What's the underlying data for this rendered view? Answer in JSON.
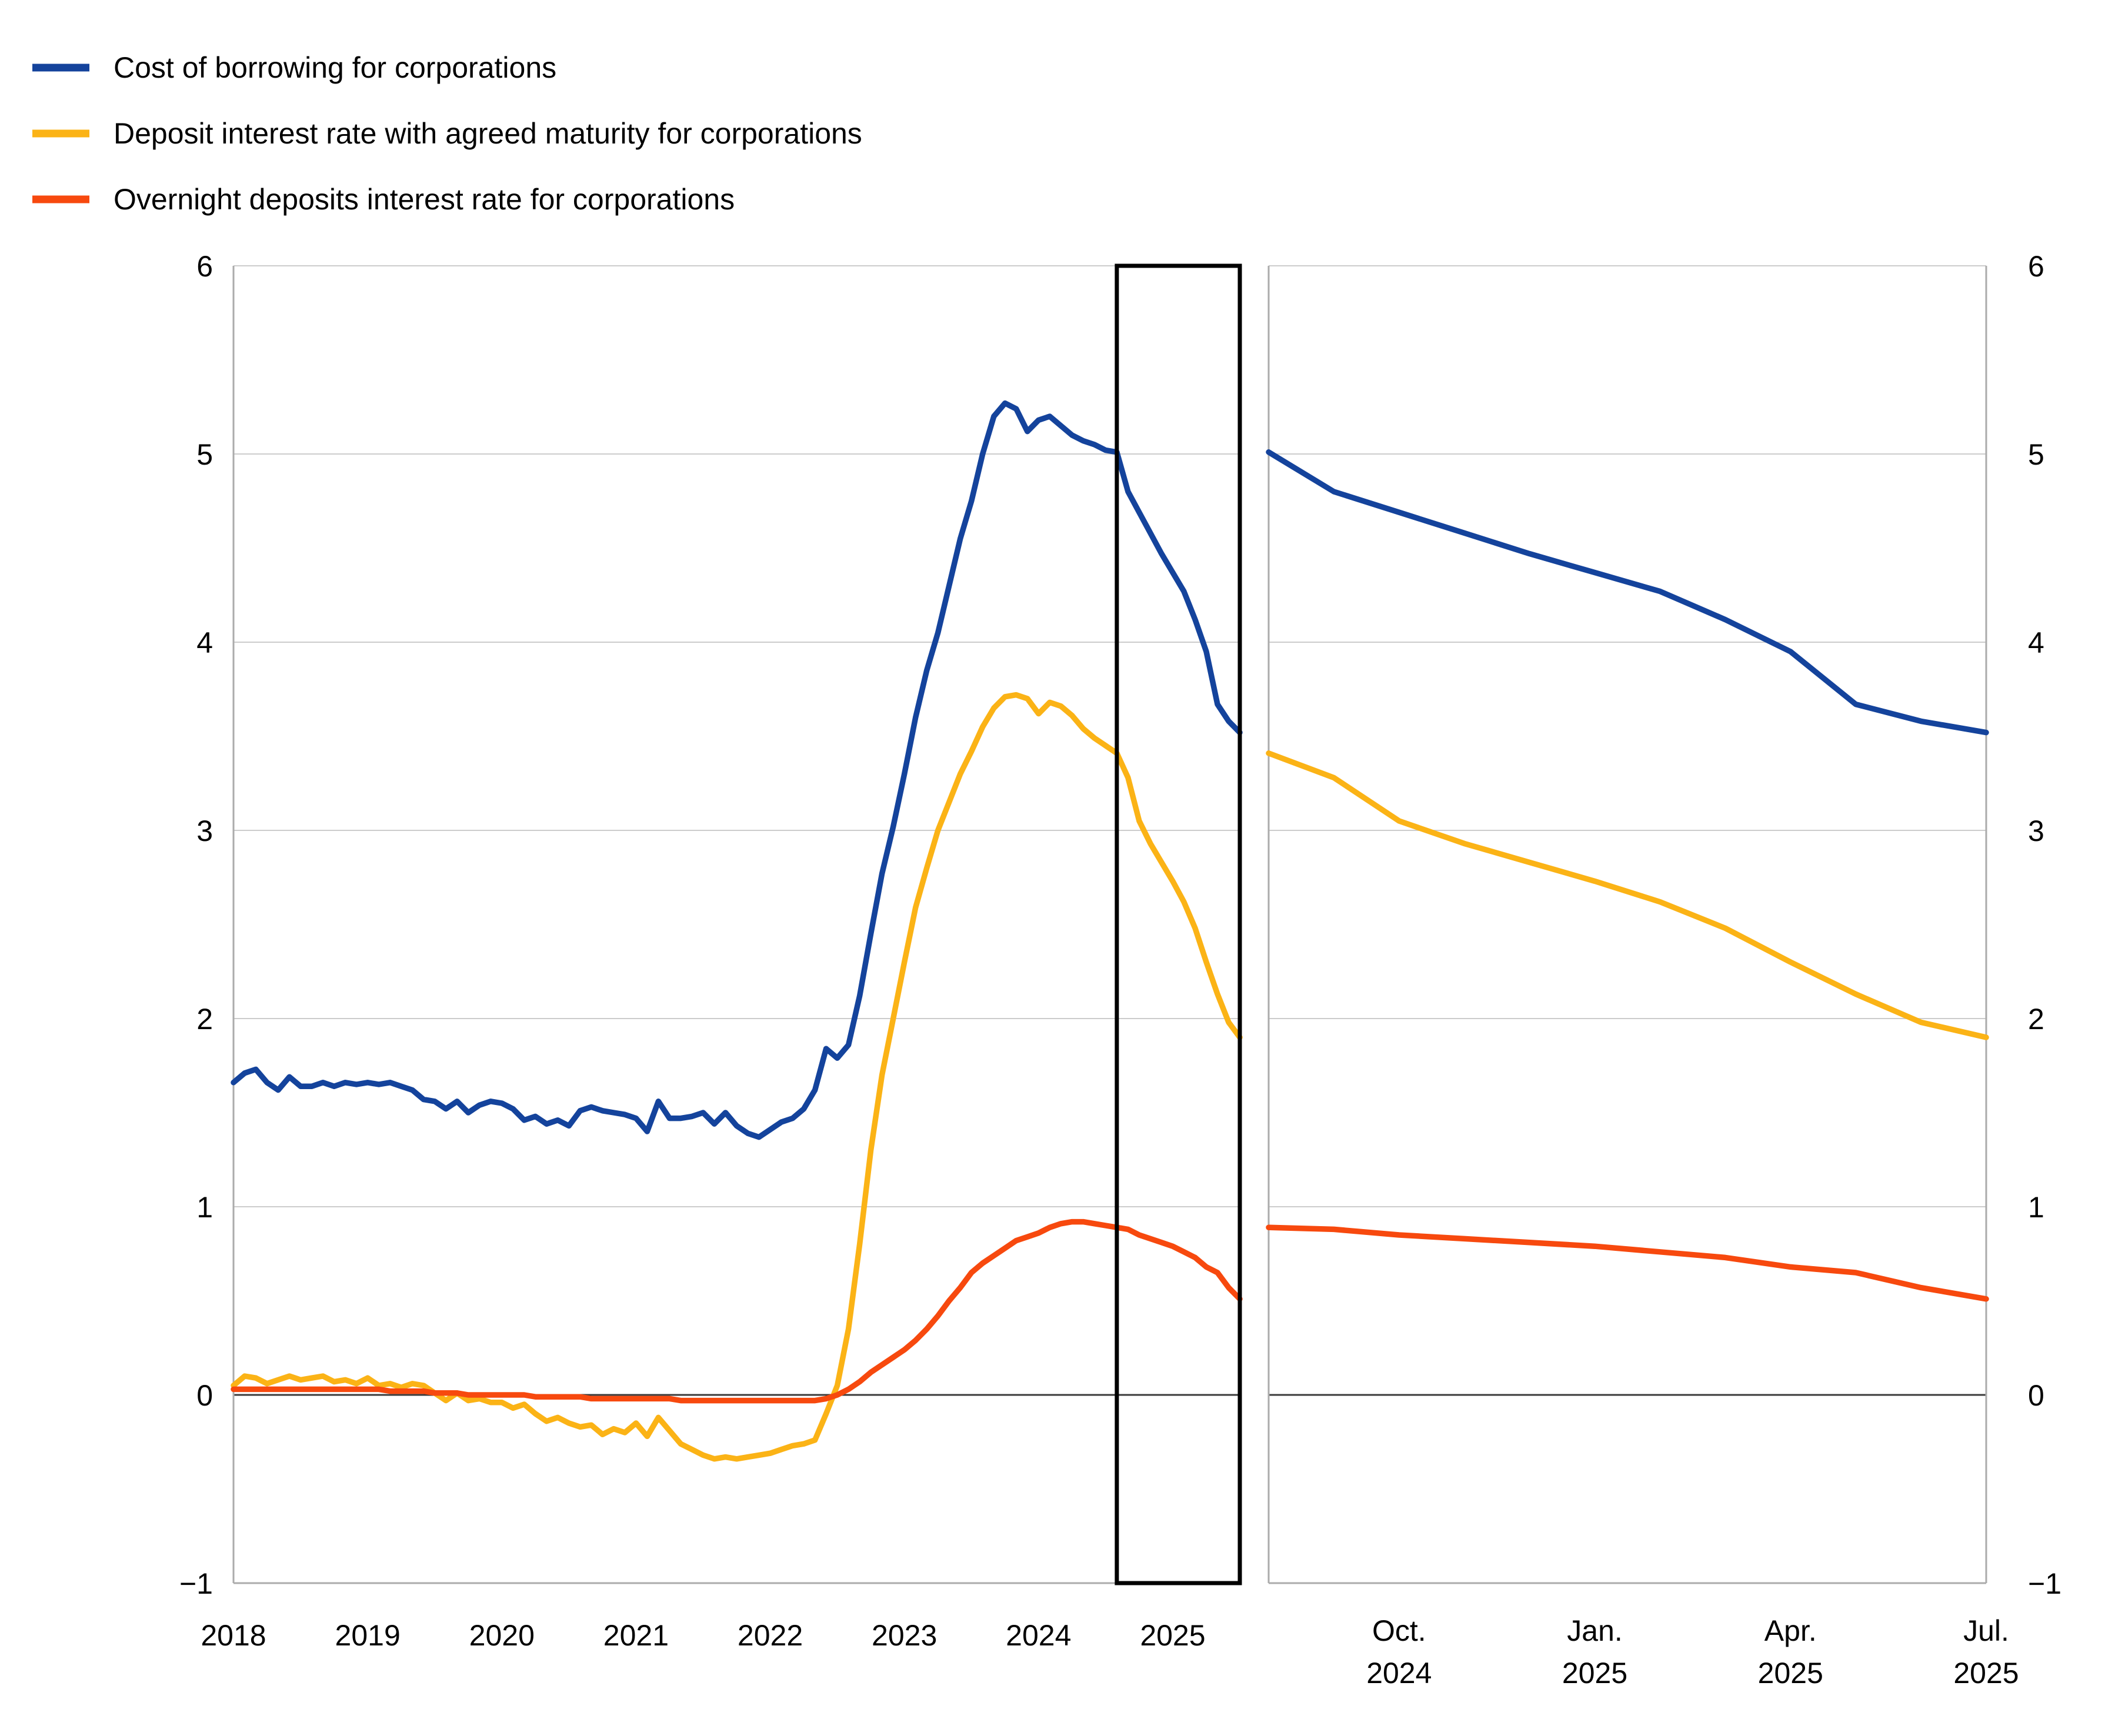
{
  "legend": {
    "items": [
      {
        "key": "cost_of_borrowing",
        "label": "Cost of borrowing for corporations",
        "color": "#14439C"
      },
      {
        "key": "deposit_agreed_maturity",
        "label": "Deposit interest rate with agreed maturity for corporations",
        "color": "#FBB316"
      },
      {
        "key": "overnight_deposits",
        "label": "Overnight deposits interest rate for corporations",
        "color": "#F7490E"
      }
    ]
  },
  "axes": {
    "y_ticks": {
      "labels": [
        "6",
        "5",
        "4",
        "3",
        "2",
        "1",
        "0",
        "−1"
      ],
      "values": [
        6,
        5,
        4,
        3,
        2,
        1,
        0,
        -1
      ]
    },
    "left_x_ticks": {
      "labels": [
        "2018",
        "2019",
        "2020",
        "2021",
        "2022",
        "2023",
        "2024",
        "2025"
      ],
      "years": [
        2018,
        2019,
        2020,
        2021,
        2022,
        2023,
        2024,
        2025
      ]
    },
    "right_x_ticks": [
      {
        "line1": "Oct.",
        "line2": "2024",
        "month_index": 2
      },
      {
        "line1": "Jan.",
        "line2": "2025",
        "month_index": 5
      },
      {
        "line1": "Apr.",
        "line2": "2025",
        "month_index": 8
      },
      {
        "line1": "Jul.",
        "line2": "2025",
        "month_index": 11
      }
    ]
  },
  "highlight_box": {
    "from": "Aug. 2024",
    "to": "Jul. 2025",
    "from_month_index": 79,
    "border_color": "#000000"
  },
  "colors": {
    "grid": "#CCCCCC",
    "zero_line": "#3A3A3A",
    "axis": "#ABABAB",
    "text": "#000000",
    "background": "#FFFFFF"
  },
  "chart_data": {
    "type": "line",
    "title": "",
    "ylabel": "",
    "ylim": [
      -1,
      6
    ],
    "grid": "horizontal",
    "legend_position": "top-left",
    "panels": [
      {
        "name": "full_history",
        "x_start": "2018-01",
        "x_end": "2025-07",
        "freq": "monthly",
        "series": [
          {
            "key": "cost_of_borrowing",
            "name": "Cost of borrowing for corporations",
            "color": "#14439C",
            "values": [
              1.66,
              1.71,
              1.73,
              1.66,
              1.62,
              1.69,
              1.64,
              1.64,
              1.66,
              1.64,
              1.66,
              1.65,
              1.66,
              1.65,
              1.66,
              1.64,
              1.62,
              1.57,
              1.56,
              1.52,
              1.56,
              1.5,
              1.54,
              1.56,
              1.55,
              1.52,
              1.46,
              1.48,
              1.44,
              1.46,
              1.43,
              1.51,
              1.53,
              1.51,
              1.5,
              1.49,
              1.47,
              1.4,
              1.56,
              1.47,
              1.47,
              1.48,
              1.5,
              1.44,
              1.5,
              1.43,
              1.39,
              1.37,
              1.41,
              1.45,
              1.47,
              1.52,
              1.62,
              1.84,
              1.79,
              1.86,
              2.12,
              2.45,
              2.77,
              3.02,
              3.3,
              3.6,
              3.85,
              4.05,
              4.3,
              4.55,
              4.75,
              5.0,
              5.2,
              5.27,
              5.24,
              5.12,
              5.18,
              5.2,
              5.15,
              5.1,
              5.07,
              5.05,
              5.02,
              5.01,
              4.8,
              4.69,
              4.58,
              4.47,
              4.37,
              4.27,
              4.12,
              3.95,
              3.67,
              3.58,
              3.52
            ]
          },
          {
            "key": "deposit_agreed_maturity",
            "name": "Deposit interest rate with agreed maturity for corporations",
            "color": "#FBB316",
            "values": [
              0.05,
              0.1,
              0.09,
              0.06,
              0.08,
              0.1,
              0.08,
              0.09,
              0.1,
              0.07,
              0.08,
              0.06,
              0.09,
              0.05,
              0.06,
              0.04,
              0.06,
              0.05,
              0.01,
              -0.03,
              0.01,
              -0.03,
              -0.02,
              -0.04,
              -0.04,
              -0.07,
              -0.05,
              -0.1,
              -0.14,
              -0.12,
              -0.15,
              -0.17,
              -0.16,
              -0.21,
              -0.18,
              -0.2,
              -0.15,
              -0.22,
              -0.12,
              -0.19,
              -0.26,
              -0.29,
              -0.32,
              -0.34,
              -0.33,
              -0.34,
              -0.33,
              -0.32,
              -0.31,
              -0.29,
              -0.27,
              -0.26,
              -0.24,
              -0.1,
              0.05,
              0.35,
              0.8,
              1.3,
              1.7,
              2.0,
              2.3,
              2.59,
              2.8,
              3.0,
              3.15,
              3.3,
              3.42,
              3.55,
              3.65,
              3.71,
              3.72,
              3.7,
              3.62,
              3.68,
              3.66,
              3.61,
              3.54,
              3.49,
              3.45,
              3.41,
              3.28,
              3.05,
              2.93,
              2.83,
              2.73,
              2.62,
              2.48,
              2.3,
              2.13,
              1.98,
              1.9
            ]
          },
          {
            "key": "overnight_deposits",
            "name": "Overnight deposits interest rate for corporations",
            "color": "#F7490E",
            "values": [
              0.03,
              0.03,
              0.03,
              0.03,
              0.03,
              0.03,
              0.03,
              0.03,
              0.03,
              0.03,
              0.03,
              0.03,
              0.03,
              0.03,
              0.02,
              0.02,
              0.02,
              0.02,
              0.01,
              0.01,
              0.01,
              0.0,
              0.0,
              0.0,
              0.0,
              0.0,
              0.0,
              -0.01,
              -0.01,
              -0.01,
              -0.01,
              -0.01,
              -0.02,
              -0.02,
              -0.02,
              -0.02,
              -0.02,
              -0.02,
              -0.02,
              -0.02,
              -0.03,
              -0.03,
              -0.03,
              -0.03,
              -0.03,
              -0.03,
              -0.03,
              -0.03,
              -0.03,
              -0.03,
              -0.03,
              -0.03,
              -0.03,
              -0.02,
              0.0,
              0.03,
              0.07,
              0.12,
              0.16,
              0.2,
              0.24,
              0.29,
              0.35,
              0.42,
              0.5,
              0.57,
              0.65,
              0.7,
              0.74,
              0.78,
              0.82,
              0.84,
              0.86,
              0.89,
              0.91,
              0.92,
              0.92,
              0.91,
              0.9,
              0.89,
              0.88,
              0.85,
              0.83,
              0.81,
              0.79,
              0.76,
              0.73,
              0.68,
              0.65,
              0.57,
              0.51
            ]
          }
        ]
      },
      {
        "name": "zoom_last_12_months",
        "x_start": "2024-08",
        "x_end": "2025-07",
        "freq": "monthly",
        "series": [
          {
            "key": "cost_of_borrowing",
            "name": "Cost of borrowing for corporations",
            "color": "#14439C",
            "values": [
              5.01,
              4.8,
              4.69,
              4.58,
              4.47,
              4.37,
              4.27,
              4.12,
              3.95,
              3.67,
              3.58,
              3.52
            ]
          },
          {
            "key": "deposit_agreed_maturity",
            "name": "Deposit interest rate with agreed maturity for corporations",
            "color": "#FBB316",
            "values": [
              3.41,
              3.28,
              3.05,
              2.93,
              2.83,
              2.73,
              2.62,
              2.48,
              2.3,
              2.13,
              1.98,
              1.9
            ]
          },
          {
            "key": "overnight_deposits",
            "name": "Overnight deposits interest rate for corporations",
            "color": "#F7490E",
            "values": [
              0.89,
              0.88,
              0.85,
              0.83,
              0.81,
              0.79,
              0.76,
              0.73,
              0.68,
              0.65,
              0.57,
              0.51
            ]
          }
        ]
      }
    ]
  }
}
